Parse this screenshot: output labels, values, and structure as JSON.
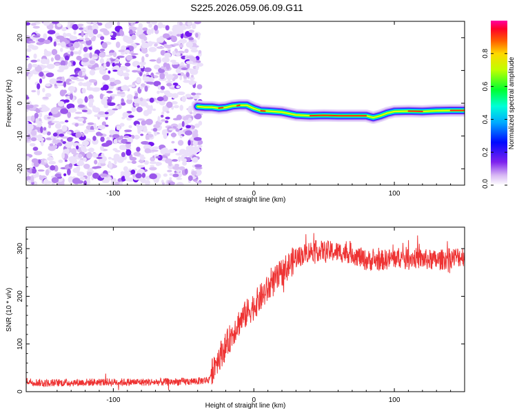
{
  "chart_data": [
    {
      "type": "heatmap",
      "title": "S225.2026.059.06.09.G11",
      "xlabel": "Height of straight line (km)",
      "ylabel": "Frequency (Hz)",
      "xlim": [
        -162,
        150
      ],
      "ylim": [
        -25,
        25
      ],
      "xticks": [
        -100,
        0,
        100
      ],
      "yticks": [
        -20,
        -10,
        0,
        10,
        20
      ],
      "noise_region_x": [
        -162,
        -40
      ],
      "frequency_ridge": {
        "x": [
          -40,
          -35,
          -30,
          -25,
          -20,
          -15,
          -10,
          -5,
          0,
          5,
          10,
          20,
          30,
          40,
          50,
          60,
          70,
          80,
          85,
          90,
          95,
          100,
          110,
          120,
          130,
          140,
          150
        ],
        "y": [
          -1,
          -1.2,
          -1.2,
          -1.5,
          -1.3,
          -0.8,
          -0.6,
          -0.6,
          -1.6,
          -2.3,
          -2.4,
          -2.7,
          -3.6,
          -3.8,
          -3.7,
          -3.8,
          -3.8,
          -3.8,
          -4.4,
          -3.8,
          -3.0,
          -2.5,
          -2.4,
          -2.5,
          -2.3,
          -2.2,
          -2.2
        ]
      },
      "colorbar": {
        "label": "Normalized spectral amplitude",
        "range": [
          0,
          1
        ],
        "ticks": [
          "0.0",
          "0.2",
          "0.4",
          "0.6",
          "0.8"
        ]
      }
    },
    {
      "type": "line",
      "xlabel": "Height of straight line (km)",
      "ylabel": "SNR (10 * v/v)",
      "xlim": [
        -162,
        150
      ],
      "ylim": [
        0,
        345
      ],
      "xticks": [
        -100,
        0,
        100
      ],
      "yticks": [
        0,
        100,
        200,
        300
      ],
      "series": [
        {
          "name": "SNR",
          "color": "#ee3333",
          "x": [
            -162,
            -150,
            -130,
            -110,
            -90,
            -70,
            -50,
            -40,
            -32,
            -28,
            -20,
            -12,
            -5,
            0,
            10,
            20,
            30,
            40,
            50,
            60,
            70,
            80,
            90,
            100,
            110,
            120,
            130,
            140,
            150
          ],
          "y": [
            22,
            18,
            19,
            20,
            20,
            20,
            21,
            22,
            25,
            58,
            95,
            140,
            165,
            180,
            215,
            250,
            280,
            295,
            295,
            293,
            290,
            275,
            275,
            280,
            282,
            278,
            275,
            280,
            285
          ]
        }
      ]
    }
  ]
}
